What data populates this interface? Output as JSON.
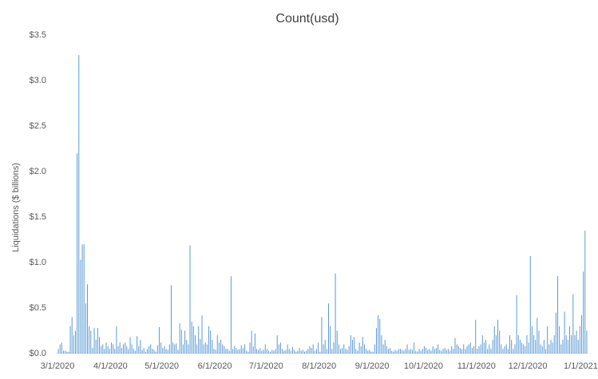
{
  "chart_data": {
    "type": "bar",
    "title": "Count(usd)",
    "y_label": "Liquidations ($ billions)",
    "color": "#5b9bd5",
    "grid": false,
    "ylim": [
      0,
      3.5
    ],
    "yticks": [
      {
        "value": 0,
        "label": "$0.0"
      },
      {
        "value": 0.5,
        "label": "$0.5"
      },
      {
        "value": 1,
        "label": "$1.0"
      },
      {
        "value": 1.5,
        "label": "$1.5"
      },
      {
        "value": 2,
        "label": "$2.0"
      },
      {
        "value": 2.5,
        "label": "$2.5"
      },
      {
        "value": 3,
        "label": "$3.0"
      },
      {
        "value": 3.5,
        "label": "$3.5"
      }
    ],
    "xticks": [
      "3/1/2020",
      "4/1/2020",
      "5/1/2020",
      "6/1/2020",
      "7/1/2020",
      "8/1/2020",
      "9/1/2020",
      "10/1/2020",
      "11/1/2020",
      "12/1/2020",
      "1/1/2021"
    ],
    "x": [
      "3/1/2020",
      "3/2/2020",
      "3/3/2020",
      "3/4/2020",
      "3/5/2020",
      "3/6/2020",
      "3/7/2020",
      "3/8/2020",
      "3/9/2020",
      "3/10/2020",
      "3/11/2020",
      "3/12/2020",
      "3/13/2020",
      "3/14/2020",
      "3/15/2020",
      "3/16/2020",
      "3/17/2020",
      "3/18/2020",
      "3/19/2020",
      "3/20/2020",
      "3/21/2020",
      "3/22/2020",
      "3/23/2020",
      "3/24/2020",
      "3/25/2020",
      "3/26/2020",
      "3/27/2020",
      "3/28/2020",
      "3/29/2020",
      "3/30/2020",
      "3/31/2020",
      "4/1/2020",
      "4/2/2020",
      "4/3/2020",
      "4/4/2020",
      "4/5/2020",
      "4/6/2020",
      "4/7/2020",
      "4/8/2020",
      "4/9/2020",
      "4/10/2020",
      "4/11/2020",
      "4/12/2020",
      "4/13/2020",
      "4/14/2020",
      "4/15/2020",
      "4/16/2020",
      "4/17/2020",
      "4/18/2020",
      "4/19/2020",
      "4/20/2020",
      "4/21/2020",
      "4/22/2020",
      "4/23/2020",
      "4/24/2020",
      "4/25/2020",
      "4/26/2020",
      "4/27/2020",
      "4/28/2020",
      "4/29/2020",
      "4/30/2020",
      "5/1/2020",
      "5/2/2020",
      "5/3/2020",
      "5/4/2020",
      "5/5/2020",
      "5/6/2020",
      "5/7/2020",
      "5/8/2020",
      "5/9/2020",
      "5/10/2020",
      "5/11/2020",
      "5/12/2020",
      "5/13/2020",
      "5/14/2020",
      "5/15/2020",
      "5/16/2020",
      "5/17/2020",
      "5/18/2020",
      "5/19/2020",
      "5/20/2020",
      "5/21/2020",
      "5/22/2020",
      "5/23/2020",
      "5/24/2020",
      "5/25/2020",
      "5/26/2020",
      "5/27/2020",
      "5/28/2020",
      "5/29/2020",
      "5/30/2020",
      "5/31/2020",
      "6/1/2020",
      "6/2/2020",
      "6/3/2020",
      "6/4/2020",
      "6/5/2020",
      "6/6/2020",
      "6/7/2020",
      "6/8/2020",
      "6/9/2020",
      "6/10/2020",
      "6/11/2020",
      "6/12/2020",
      "6/13/2020",
      "6/14/2020",
      "6/15/2020",
      "6/16/2020",
      "6/17/2020",
      "6/18/2020",
      "6/19/2020",
      "6/20/2020",
      "6/21/2020",
      "6/22/2020",
      "6/23/2020",
      "6/24/2020",
      "6/25/2020",
      "6/26/2020",
      "6/27/2020",
      "6/28/2020",
      "6/29/2020",
      "6/30/2020",
      "7/1/2020",
      "7/2/2020",
      "7/3/2020",
      "7/4/2020",
      "7/5/2020",
      "7/6/2020",
      "7/7/2020",
      "7/8/2020",
      "7/9/2020",
      "7/10/2020",
      "7/11/2020",
      "7/12/2020",
      "7/13/2020",
      "7/14/2020",
      "7/15/2020",
      "7/16/2020",
      "7/17/2020",
      "7/18/2020",
      "7/19/2020",
      "7/20/2020",
      "7/21/2020",
      "7/22/2020",
      "7/23/2020",
      "7/24/2020",
      "7/25/2020",
      "7/26/2020",
      "7/27/2020",
      "7/28/2020",
      "7/29/2020",
      "7/30/2020",
      "7/31/2020",
      "8/1/2020",
      "8/2/2020",
      "8/3/2020",
      "8/4/2020",
      "8/5/2020",
      "8/6/2020",
      "8/7/2020",
      "8/8/2020",
      "8/9/2020",
      "8/10/2020",
      "8/11/2020",
      "8/12/2020",
      "8/13/2020",
      "8/14/2020",
      "8/15/2020",
      "8/16/2020",
      "8/17/2020",
      "8/18/2020",
      "8/19/2020",
      "8/20/2020",
      "8/21/2020",
      "8/22/2020",
      "8/23/2020",
      "8/24/2020",
      "8/25/2020",
      "8/26/2020",
      "8/27/2020",
      "8/28/2020",
      "8/29/2020",
      "8/30/2020",
      "8/31/2020",
      "9/1/2020",
      "9/2/2020",
      "9/3/2020",
      "9/4/2020",
      "9/5/2020",
      "9/6/2020",
      "9/7/2020",
      "9/8/2020",
      "9/9/2020",
      "9/10/2020",
      "9/11/2020",
      "9/12/2020",
      "9/13/2020",
      "9/14/2020",
      "9/15/2020",
      "9/16/2020",
      "9/17/2020",
      "9/18/2020",
      "9/19/2020",
      "9/20/2020",
      "9/21/2020",
      "9/22/2020",
      "9/23/2020",
      "9/24/2020",
      "9/25/2020",
      "9/26/2020",
      "9/27/2020",
      "9/28/2020",
      "9/29/2020",
      "9/30/2020",
      "10/1/2020",
      "10/2/2020",
      "10/3/2020",
      "10/4/2020",
      "10/5/2020",
      "10/6/2020",
      "10/7/2020",
      "10/8/2020",
      "10/9/2020",
      "10/10/2020",
      "10/11/2020",
      "10/12/2020",
      "10/13/2020",
      "10/14/2020",
      "10/15/2020",
      "10/16/2020",
      "10/17/2020",
      "10/18/2020",
      "10/19/2020",
      "10/20/2020",
      "10/21/2020",
      "10/22/2020",
      "10/23/2020",
      "10/24/2020",
      "10/25/2020",
      "10/26/2020",
      "10/27/2020",
      "10/28/2020",
      "10/29/2020",
      "10/30/2020",
      "10/31/2020",
      "11/1/2020",
      "11/2/2020",
      "11/3/2020",
      "11/4/2020",
      "11/5/2020",
      "11/6/2020",
      "11/7/2020",
      "11/8/2020",
      "11/9/2020",
      "11/10/2020",
      "11/11/2020",
      "11/12/2020",
      "11/13/2020",
      "11/14/2020",
      "11/15/2020",
      "11/16/2020",
      "11/17/2020",
      "11/18/2020",
      "11/19/2020",
      "11/20/2020",
      "11/21/2020",
      "11/22/2020",
      "11/23/2020",
      "11/24/2020",
      "11/25/2020",
      "11/26/2020",
      "11/27/2020",
      "11/28/2020",
      "11/29/2020",
      "11/30/2020",
      "12/1/2020",
      "12/2/2020",
      "12/3/2020",
      "12/4/2020",
      "12/5/2020",
      "12/6/2020",
      "12/7/2020",
      "12/8/2020",
      "12/9/2020",
      "12/10/2020",
      "12/11/2020",
      "12/12/2020",
      "12/13/2020",
      "12/14/2020",
      "12/15/2020",
      "12/16/2020",
      "12/17/2020",
      "12/18/2020",
      "12/19/2020",
      "12/20/2020",
      "12/21/2020",
      "12/22/2020",
      "12/23/2020",
      "12/24/2020",
      "12/25/2020",
      "12/26/2020",
      "12/27/2020",
      "12/28/2020",
      "12/29/2020",
      "12/30/2020",
      "12/31/2020",
      "1/1/2021",
      "1/2/2021",
      "1/3/2021",
      "1/4/2021"
    ],
    "values": [
      0.05,
      0.1,
      0.12,
      0.03,
      0.03,
      0.02,
      0.02,
      0.3,
      0.4,
      0.2,
      0.25,
      2.2,
      3.28,
      1.03,
      1.2,
      1.2,
      0.55,
      0.76,
      0.3,
      0.25,
      0.06,
      0.28,
      0.15,
      0.28,
      0.18,
      0.08,
      0.1,
      0.05,
      0.12,
      0.08,
      0.05,
      0.12,
      0.1,
      0.05,
      0.3,
      0.08,
      0.12,
      0.06,
      0.1,
      0.12,
      0.08,
      0.05,
      0.18,
      0.1,
      0.05,
      0.03,
      0.19,
      0.08,
      0.15,
      0.04,
      0.06,
      0.02,
      0.05,
      0.08,
      0.1,
      0.05,
      0.04,
      0.02,
      0.09,
      0.29,
      0.12,
      0.06,
      0.08,
      0.05,
      0.04,
      0.1,
      0.75,
      0.12,
      0.1,
      0.11,
      0.04,
      0.33,
      0.26,
      0.1,
      0.25,
      0.15,
      0.1,
      1.19,
      0.35,
      0.3,
      0.2,
      0.1,
      0.3,
      0.16,
      0.42,
      0.1,
      0.12,
      0.1,
      0.3,
      0.25,
      0.15,
      0.05,
      0.04,
      0.2,
      0.12,
      0.15,
      0.1,
      0.08,
      0.05,
      0.05,
      0.03,
      0.85,
      0.05,
      0.08,
      0.06,
      0.04,
      0.05,
      0.09,
      0.06,
      0.1,
      0.03,
      0.02,
      0.12,
      0.25,
      0.08,
      0.22,
      0.05,
      0.04,
      0.06,
      0.03,
      0.04,
      0.1,
      0.05,
      0.03,
      0.02,
      0.04,
      0.03,
      0.05,
      0.2,
      0.1,
      0.12,
      0.05,
      0.03,
      0.04,
      0.1,
      0.05,
      0.03,
      0.07,
      0.04,
      0.02,
      0.03,
      0.06,
      0.03,
      0.04,
      0.02,
      0.03,
      0.05,
      0.08,
      0.06,
      0.1,
      0.03,
      0.05,
      0.12,
      0.02,
      0.4,
      0.1,
      0.15,
      0.05,
      0.55,
      0.3,
      0.05,
      0.12,
      0.88,
      0.25,
      0.1,
      0.05,
      0.06,
      0.1,
      0.05,
      0.04,
      0.08,
      0.2,
      0.15,
      0.18,
      0.05,
      0.03,
      0.12,
      0.08,
      0.18,
      0.1,
      0.05,
      0.03,
      0.04,
      0.02,
      0.02,
      0.1,
      0.28,
      0.42,
      0.38,
      0.2,
      0.1,
      0.15,
      0.08,
      0.05,
      0.06,
      0.03,
      0.02,
      0.04,
      0.03,
      0.05,
      0.05,
      0.04,
      0.03,
      0.05,
      0.1,
      0.04,
      0.05,
      0.04,
      0.12,
      0.03,
      0.02,
      0.05,
      0.03,
      0.05,
      0.08,
      0.06,
      0.04,
      0.05,
      0.03,
      0.08,
      0.05,
      0.06,
      0.1,
      0.04,
      0.03,
      0.05,
      0.06,
      0.04,
      0.05,
      0.03,
      0.08,
      0.05,
      0.17,
      0.1,
      0.08,
      0.06,
      0.05,
      0.1,
      0.05,
      0.08,
      0.1,
      0.12,
      0.06,
      0.08,
      0.37,
      0.05,
      0.08,
      0.1,
      0.2,
      0.12,
      0.15,
      0.05,
      0.1,
      0.05,
      0.15,
      0.3,
      0.2,
      0.37,
      0.25,
      0.1,
      0.05,
      0.08,
      0.1,
      0.05,
      0.2,
      0.15,
      0.05,
      0.1,
      0.64,
      0.2,
      0.15,
      0.12,
      0.1,
      0.08,
      0.2,
      0.12,
      1.07,
      0.3,
      0.2,
      0.15,
      0.39,
      0.25,
      0.1,
      0.08,
      0.15,
      0.05,
      0.3,
      0.1,
      0.15,
      0.12,
      0.2,
      0.45,
      0.85,
      0.3,
      0.1,
      0.15,
      0.46,
      0.2,
      0.15,
      0.3,
      0.2,
      0.65,
      0.2,
      0.25,
      0.15,
      0.3,
      0.42,
      0.9,
      1.35,
      0.25
    ]
  }
}
